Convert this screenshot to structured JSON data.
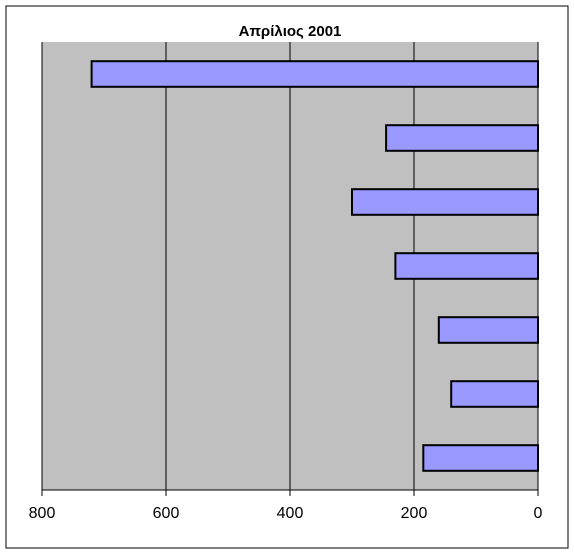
{
  "chart_data": {
    "type": "bar",
    "orientation": "horizontal",
    "title": "Απρίλιος 2001",
    "categories": [
      null,
      null,
      null,
      null,
      null,
      null,
      null
    ],
    "values": [
      720,
      245,
      300,
      230,
      160,
      140,
      185
    ],
    "color": "#9999ff",
    "xlim": [
      800,
      0
    ],
    "xticks": [
      800,
      600,
      400,
      200,
      0
    ],
    "grid": true
  }
}
